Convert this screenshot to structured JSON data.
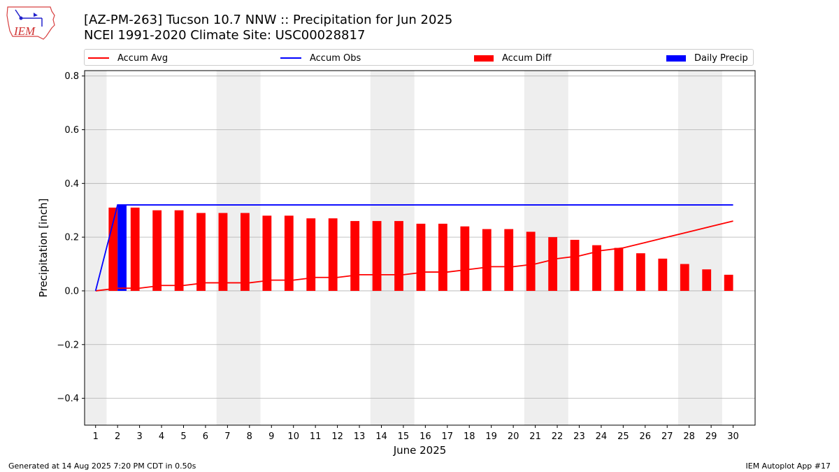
{
  "header": {
    "title_line1": "[AZ-PM-263] Tucson 10.7 NNW :: Precipitation for Jun 2025",
    "title_line2": "NCEI 1991-2020 Climate Site: USC00028817"
  },
  "logo": {
    "text": "IEM",
    "icon": "iem-iowa-logo"
  },
  "footer": {
    "generated": "Generated at 14 Aug 2025 7:20 PM CDT in 0.50s",
    "app": "IEM Autoplot App #17"
  },
  "colors": {
    "accum_avg": "#ff0000",
    "accum_obs": "#0000ff",
    "accum_diff": "#ff0000",
    "daily_precip": "#0000ff",
    "weekend_shade": "#eeeeee",
    "grid": "#b0b0b0"
  },
  "chart_data": {
    "type": "bar",
    "xlabel": "June 2025",
    "ylabel": "Precipitation [inch]",
    "ylim": [
      -0.5,
      0.82
    ],
    "yticks": [
      -0.4,
      -0.2,
      0.0,
      0.2,
      0.4,
      0.6,
      0.8
    ],
    "ytick_labels": [
      "−0.4",
      "−0.2",
      "0.0",
      "0.2",
      "0.4",
      "0.6",
      "0.8"
    ],
    "xlim": [
      0.5,
      31
    ],
    "x": [
      1,
      2,
      3,
      4,
      5,
      6,
      7,
      8,
      9,
      10,
      11,
      12,
      13,
      14,
      15,
      16,
      17,
      18,
      19,
      20,
      21,
      22,
      23,
      24,
      25,
      26,
      27,
      28,
      29,
      30
    ],
    "grid": "horizontal",
    "legend_position": "top",
    "shaded_ranges": [
      [
        0.5,
        1.5
      ],
      [
        6.5,
        8.5
      ],
      [
        13.5,
        15.5
      ],
      [
        20.5,
        22.5
      ],
      [
        27.5,
        29.5
      ]
    ],
    "series": [
      {
        "name": "Accum Avg",
        "kind": "line",
        "color": "#ff0000",
        "values": [
          0.0,
          0.01,
          0.01,
          0.02,
          0.02,
          0.03,
          0.03,
          0.03,
          0.04,
          0.04,
          0.05,
          0.05,
          0.06,
          0.06,
          0.06,
          0.07,
          0.07,
          0.08,
          0.09,
          0.09,
          0.1,
          0.12,
          0.13,
          0.15,
          0.16,
          0.18,
          0.2,
          0.22,
          0.24,
          0.26
        ]
      },
      {
        "name": "Accum Obs",
        "kind": "line",
        "color": "#0000ff",
        "values": [
          0.0,
          0.32,
          0.32,
          0.32,
          0.32,
          0.32,
          0.32,
          0.32,
          0.32,
          0.32,
          0.32,
          0.32,
          0.32,
          0.32,
          0.32,
          0.32,
          0.32,
          0.32,
          0.32,
          0.32,
          0.32,
          0.32,
          0.32,
          0.32,
          0.32,
          0.32,
          0.32,
          0.32,
          0.32,
          0.32
        ]
      },
      {
        "name": "Accum Diff",
        "kind": "bar",
        "color": "#ff0000",
        "values": [
          0.0,
          0.31,
          0.31,
          0.3,
          0.3,
          0.29,
          0.29,
          0.29,
          0.28,
          0.28,
          0.27,
          0.27,
          0.26,
          0.26,
          0.26,
          0.25,
          0.25,
          0.24,
          0.23,
          0.23,
          0.22,
          0.2,
          0.19,
          0.17,
          0.16,
          0.14,
          0.12,
          0.1,
          0.08,
          0.06
        ]
      },
      {
        "name": "Daily Precip",
        "kind": "bar",
        "color": "#0000ff",
        "values": [
          0.0,
          0.32,
          0,
          0,
          0,
          0,
          0,
          0,
          0,
          0,
          0,
          0,
          0,
          0,
          0,
          0,
          0,
          0,
          0,
          0,
          0,
          0,
          0,
          0,
          0,
          0,
          0,
          0,
          0,
          0
        ]
      }
    ]
  }
}
